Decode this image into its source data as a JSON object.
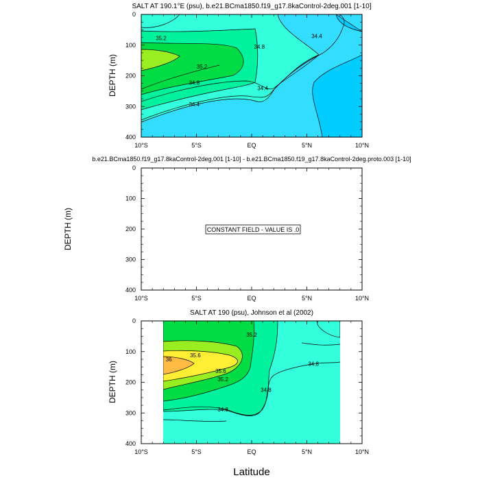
{
  "figure": {
    "xlabel": "Latitude"
  },
  "chart_data": [
    {
      "type": "contour",
      "title": "SALT AT 190.1°E (psu), b.e21.BCma1850.f19_g17.8kaControl-2deg.001 [1-10]",
      "ylabel": "DEPTH (m)",
      "xlim": [
        -10,
        10
      ],
      "ylim": [
        400,
        0
      ],
      "x_ticks": [
        "10°S",
        "5°S",
        "EQ",
        "5°N",
        "10°N"
      ],
      "y_ticks": [
        "0",
        "100",
        "200",
        "300",
        "400"
      ],
      "contour_labels": [
        {
          "text": "35.2",
          "lat": -8.2,
          "depth": 77
        },
        {
          "text": "35.2",
          "lat": -4.5,
          "depth": 170
        },
        {
          "text": "34.8",
          "lat": -5.2,
          "depth": 222
        },
        {
          "text": "34.4",
          "lat": -5.2,
          "depth": 293
        },
        {
          "text": "34.8",
          "lat": 0.7,
          "depth": 105
        },
        {
          "text": "34.4",
          "lat": 1.0,
          "depth": 240
        },
        {
          "text": "34.4",
          "lat": 5.9,
          "depth": 70
        }
      ],
      "colors": [
        "#00ccff",
        "#33ddff",
        "#33ffdd",
        "#00f29e",
        "#00dd44",
        "#99ee22"
      ]
    },
    {
      "type": "contour",
      "title": "b.e21.BCma1850.f19_g17.8kaControl-2deg.001 [1-10] - b.e21.BCma1850.f19_g17.8kaControl-2deg.proto.003 [1-10]",
      "ylabel": "DEPTH (m)",
      "xlim": [
        -10,
        10
      ],
      "ylim": [
        400,
        0
      ],
      "x_ticks": [
        "10°S",
        "5°S",
        "EQ",
        "5°N",
        "10°N"
      ],
      "y_ticks": [
        "0",
        "100",
        "200",
        "300",
        "400"
      ],
      "annotation": "CONSTANT FIELD - VALUE IS .0"
    },
    {
      "type": "contour",
      "title": "SALT AT 190 (psu), Johnson et al (2002)",
      "ylabel": "DEPTH (m)",
      "xlim": [
        -10,
        10
      ],
      "ylim": [
        400,
        0
      ],
      "x_ticks": [
        "10°S",
        "5°S",
        "EQ",
        "5°N",
        "10°N"
      ],
      "y_ticks": [
        "0",
        "100",
        "200",
        "300",
        "400"
      ],
      "contour_labels": [
        {
          "text": "36",
          "lat": -7.5,
          "depth": 125
        },
        {
          "text": "35.6",
          "lat": -5.1,
          "depth": 112
        },
        {
          "text": "35.6",
          "lat": -2.8,
          "depth": 163
        },
        {
          "text": "35.2",
          "lat": -2.6,
          "depth": 190
        },
        {
          "text": "35.2",
          "lat": 0.0,
          "depth": 45
        },
        {
          "text": "34.8",
          "lat": 1.3,
          "depth": 225
        },
        {
          "text": "34.8",
          "lat": -2.6,
          "depth": 288
        },
        {
          "text": "34.8",
          "lat": 5.6,
          "depth": 140
        }
      ],
      "colors": [
        "#33ffdd",
        "#00f29e",
        "#00dd44",
        "#99ee22",
        "#ffee33",
        "#ffbb44"
      ]
    }
  ]
}
